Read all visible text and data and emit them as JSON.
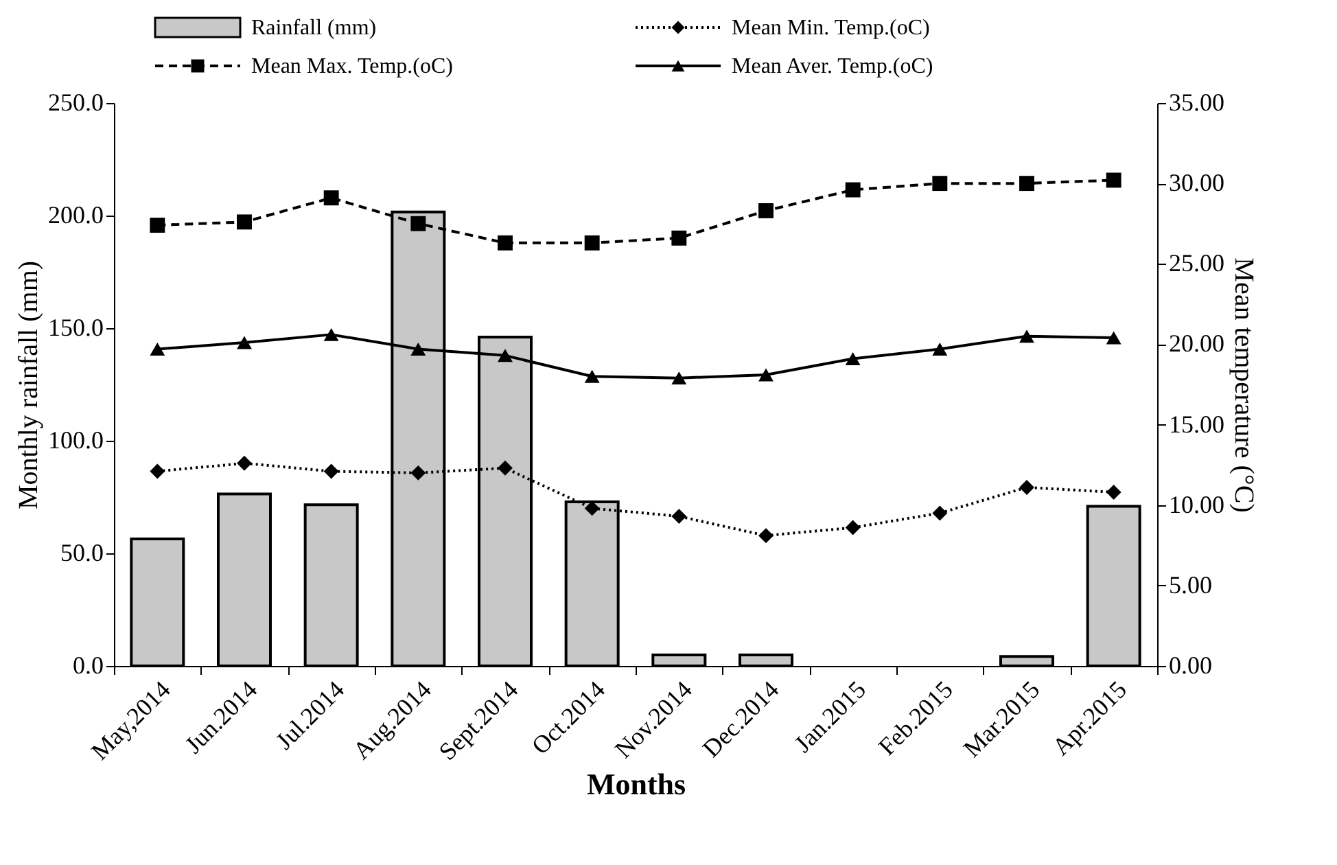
{
  "chart_data": {
    "type": "bar",
    "xlabel": "Months",
    "ylabel": "Monthly rainfall (mm)",
    "y2label": "Mean temperature (°C)",
    "categories": [
      "May,2014",
      "Jun.2014",
      "Jul.2014",
      "Aug.2014",
      "Sept.2014",
      "Oct.2014",
      "Nov.2014",
      "Dec.2014",
      "Jan.2015",
      "Feb.2015",
      "Mar.2015",
      "Apr.2015"
    ],
    "series": [
      {
        "name": "Rainfall (mm)",
        "type": "bar",
        "color": "#c8c8c8",
        "values": [
          56.4,
          76.4,
          71.6,
          201.6,
          146,
          72.9,
          4.9,
          4.9,
          null,
          null,
          4.2,
          70.9
        ]
      },
      {
        "name": "Mean Min. Temp.(oC)",
        "type": "line",
        "axis": "y2",
        "color": "#000000",
        "marker": "diamond",
        "line_style": "dotted",
        "values": [
          12.1,
          12.6,
          12.1,
          12.0,
          12.3,
          9.8,
          9.3,
          8.1,
          8.6,
          9.5,
          11.1,
          10.8
        ]
      },
      {
        "name": "Mean Max. Temp.(oC)",
        "type": "line",
        "axis": "y2",
        "color": "#000000",
        "marker": "square",
        "line_style": "dashed",
        "values": [
          27.4,
          27.6,
          29.1,
          27.5,
          26.3,
          26.3,
          26.6,
          28.3,
          29.6,
          30.0,
          30.0,
          30.2
        ]
      },
      {
        "name": "Mean Aver. Temp.(oC)",
        "type": "line",
        "axis": "y2",
        "color": "#000000",
        "marker": "triangle",
        "line_style": "solid",
        "values": [
          19.7,
          20.1,
          20.6,
          19.7,
          19.3,
          18.0,
          17.9,
          18.1,
          19.1,
          19.7,
          20.5,
          20.4
        ]
      }
    ],
    "ylim": [
      0,
      250
    ],
    "yticks": [
      {
        "value": 0,
        "label": "0.0"
      },
      {
        "value": 50,
        "label": "50.0"
      },
      {
        "value": 100,
        "label": "100.0"
      },
      {
        "value": 150,
        "label": "150.0"
      },
      {
        "value": 200,
        "label": "200.0"
      },
      {
        "value": 250,
        "label": "250.0"
      }
    ],
    "y2lim": [
      0,
      35
    ],
    "y2ticks": [
      {
        "value": 0,
        "label": "0.00"
      },
      {
        "value": 5,
        "label": "5.00"
      },
      {
        "value": 10,
        "label": "10.00"
      },
      {
        "value": 15,
        "label": "15.00"
      },
      {
        "value": 20,
        "label": "20.00"
      },
      {
        "value": 25,
        "label": "25.00"
      },
      {
        "value": 30,
        "label": "30.00"
      },
      {
        "value": 35,
        "label": "35.00"
      }
    ],
    "grid": false,
    "legend": "top"
  }
}
